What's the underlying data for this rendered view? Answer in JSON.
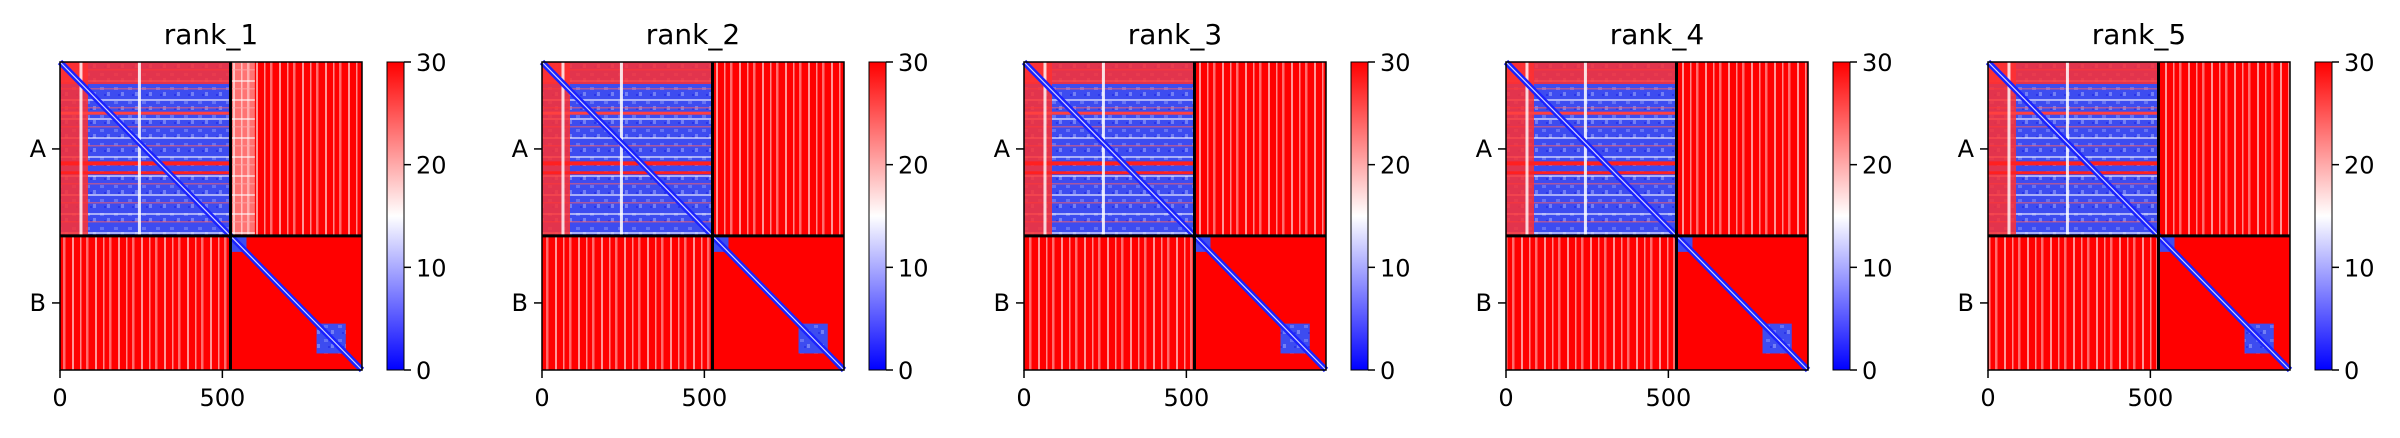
{
  "chart_data": [
    {
      "type": "heatmap",
      "title": "rank_1",
      "xlim": [
        0,
        930
      ],
      "x_ticks": [
        0,
        500
      ],
      "y_tick_labels": [
        "A",
        "B"
      ],
      "chain_boundary": 525,
      "colorbar": {
        "min": 0,
        "max": 30,
        "ticks": [
          0,
          10,
          20,
          30
        ],
        "colors": [
          "#0000ff",
          "#ffffff",
          "#ff0000"
        ]
      },
      "regions": {
        "A_A": "mostly low (blue) with red/white horizontal stripes",
        "A_B": "A rows x B cols: white/red mix near 0-600, red beyond",
        "B_A": "red with pale stripes",
        "B_B": "low along diagonal, red off-diagonal, blue block near 800-900"
      }
    },
    {
      "type": "heatmap",
      "title": "rank_2",
      "xlim": [
        0,
        930
      ],
      "x_ticks": [
        0,
        500
      ],
      "y_tick_labels": [
        "A",
        "B"
      ],
      "chain_boundary": 525,
      "colorbar": {
        "min": 0,
        "max": 30,
        "ticks": [
          0,
          10,
          20,
          30
        ],
        "colors": [
          "#0000ff",
          "#ffffff",
          "#ff0000"
        ]
      },
      "regions": {
        "A_A": "mostly low (blue) with red/white stripes",
        "A_B": "red",
        "B_A": "red with pale stripes",
        "B_B": "low along diagonal, red off-diagonal"
      }
    },
    {
      "type": "heatmap",
      "title": "rank_3",
      "xlim": [
        0,
        930
      ],
      "x_ticks": [
        0,
        500
      ],
      "y_tick_labels": [
        "A",
        "B"
      ],
      "chain_boundary": 525,
      "colorbar": {
        "min": 0,
        "max": 30,
        "ticks": [
          0,
          10,
          20,
          30
        ],
        "colors": [
          "#0000ff",
          "#ffffff",
          "#ff0000"
        ]
      },
      "regions": {
        "A_A": "mostly low (blue) with red/white stripes",
        "A_B": "red",
        "B_A": "red with pale stripes",
        "B_B": "low along diagonal, red off-diagonal"
      }
    },
    {
      "type": "heatmap",
      "title": "rank_4",
      "xlim": [
        0,
        930
      ],
      "x_ticks": [
        0,
        500
      ],
      "y_tick_labels": [
        "A",
        "B"
      ],
      "chain_boundary": 525,
      "colorbar": {
        "min": 0,
        "max": 30,
        "ticks": [
          0,
          10,
          20,
          30
        ],
        "colors": [
          "#0000ff",
          "#ffffff",
          "#ff0000"
        ]
      },
      "regions": {
        "A_A": "mostly low (blue) with red/white stripes",
        "A_B": "red",
        "B_A": "red with pale stripes",
        "B_B": "low along diagonal, red off-diagonal"
      }
    },
    {
      "type": "heatmap",
      "title": "rank_5",
      "xlim": [
        0,
        930
      ],
      "x_ticks": [
        0,
        500
      ],
      "y_tick_labels": [
        "A",
        "B"
      ],
      "chain_boundary": 525,
      "colorbar": {
        "min": 0,
        "max": 30,
        "ticks": [
          0,
          10,
          20,
          30
        ],
        "colors": [
          "#0000ff",
          "#ffffff",
          "#ff0000"
        ]
      },
      "regions": {
        "A_A": "mostly low (blue) with red/white stripes",
        "A_B": "red",
        "B_A": "red with pale stripes",
        "B_B": "low along diagonal, red off-diagonal"
      }
    }
  ]
}
